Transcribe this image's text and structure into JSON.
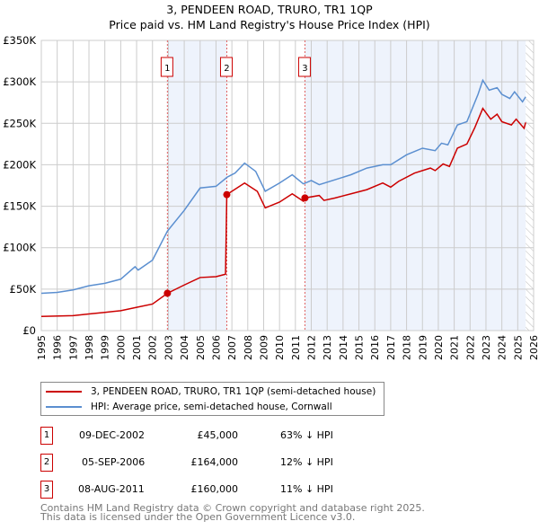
{
  "header": {
    "title": "3, PENDEEN ROAD, TRURO, TR1 1QP",
    "subtitle": "Price paid vs. HM Land Registry's House Price Index (HPI)"
  },
  "chart_data": {
    "type": "line",
    "title": "3, PENDEEN ROAD, TRURO, TR1 1QP",
    "subtitle": "Price paid vs. HM Land Registry's House Price Index (HPI)",
    "xlim": [
      1995,
      2026
    ],
    "ylim": [
      0,
      350000
    ],
    "x_ticks": [
      "1995",
      "1996",
      "1997",
      "1998",
      "1999",
      "2000",
      "2001",
      "2002",
      "2003",
      "2004",
      "2005",
      "2006",
      "2007",
      "2008",
      "2009",
      "2010",
      "2011",
      "2012",
      "2013",
      "2014",
      "2015",
      "2016",
      "2017",
      "2018",
      "2019",
      "2020",
      "2021",
      "2022",
      "2023",
      "2024",
      "2025",
      "2026"
    ],
    "y_ticks": [
      {
        "v": 0,
        "label": "£0"
      },
      {
        "v": 50000,
        "label": "£50K"
      },
      {
        "v": 100000,
        "label": "£100K"
      },
      {
        "v": 150000,
        "label": "£150K"
      },
      {
        "v": 200000,
        "label": "£200K"
      },
      {
        "v": 250000,
        "label": "£250K"
      },
      {
        "v": 300000,
        "label": "£300K"
      },
      {
        "v": 350000,
        "label": "£350K"
      }
    ],
    "grid": true,
    "series": [
      {
        "name": "3, PENDEEN ROAD, TRURO, TR1 1QP (semi-detached house)",
        "color": "#cc0000",
        "points": [
          [
            1995,
            17000
          ],
          [
            1997,
            18000
          ],
          [
            1998,
            20000
          ],
          [
            1999,
            22000
          ],
          [
            2000,
            24000
          ],
          [
            2001,
            28000
          ],
          [
            2002,
            32000
          ],
          [
            2002.94,
            45000
          ],
          [
            2004,
            55000
          ],
          [
            2005,
            64000
          ],
          [
            2006,
            65000
          ],
          [
            2006.6,
            68000
          ],
          [
            2006.68,
            164000
          ],
          [
            2007.8,
            178000
          ],
          [
            2008.6,
            168000
          ],
          [
            2009.1,
            148000
          ],
          [
            2010,
            155000
          ],
          [
            2010.8,
            165000
          ],
          [
            2011.5,
            156000
          ],
          [
            2011.6,
            160000
          ],
          [
            2012.5,
            163000
          ],
          [
            2012.8,
            157000
          ],
          [
            2013.5,
            160000
          ],
          [
            2014.5,
            165000
          ],
          [
            2015.5,
            170000
          ],
          [
            2016.5,
            178000
          ],
          [
            2017,
            173000
          ],
          [
            2017.5,
            180000
          ],
          [
            2018.5,
            190000
          ],
          [
            2019.5,
            196000
          ],
          [
            2019.8,
            193000
          ],
          [
            2020.3,
            201000
          ],
          [
            2020.7,
            198000
          ],
          [
            2021.2,
            220000
          ],
          [
            2021.8,
            225000
          ],
          [
            2022.3,
            245000
          ],
          [
            2022.8,
            268000
          ],
          [
            2023.3,
            255000
          ],
          [
            2023.7,
            261000
          ],
          [
            2024,
            252000
          ],
          [
            2024.6,
            248000
          ],
          [
            2024.9,
            255000
          ],
          [
            2025.4,
            244000
          ],
          [
            2025.5,
            251000
          ]
        ]
      },
      {
        "name": "HPI: Average price, semi-detached house, Cornwall",
        "color": "#5b8fd0",
        "points": [
          [
            1995,
            45000
          ],
          [
            1996,
            46000
          ],
          [
            1997,
            49000
          ],
          [
            1998,
            54000
          ],
          [
            1999,
            57000
          ],
          [
            2000,
            62000
          ],
          [
            2000.9,
            77000
          ],
          [
            2001.1,
            73000
          ],
          [
            2002,
            85000
          ],
          [
            2002.94,
            120000
          ],
          [
            2004,
            145000
          ],
          [
            2005,
            172000
          ],
          [
            2006,
            174000
          ],
          [
            2006.7,
            185000
          ],
          [
            2007.2,
            190000
          ],
          [
            2007.8,
            202000
          ],
          [
            2008.5,
            192000
          ],
          [
            2009.1,
            168000
          ],
          [
            2010,
            178000
          ],
          [
            2010.8,
            188000
          ],
          [
            2011.5,
            177000
          ],
          [
            2012,
            181000
          ],
          [
            2012.5,
            176000
          ],
          [
            2013.5,
            182000
          ],
          [
            2014.5,
            188000
          ],
          [
            2015.5,
            196000
          ],
          [
            2016.5,
            200000
          ],
          [
            2017,
            200000
          ],
          [
            2018,
            212000
          ],
          [
            2019,
            220000
          ],
          [
            2019.8,
            217000
          ],
          [
            2020.2,
            226000
          ],
          [
            2020.6,
            224000
          ],
          [
            2021.2,
            248000
          ],
          [
            2021.8,
            252000
          ],
          [
            2022.5,
            285000
          ],
          [
            2022.8,
            302000
          ],
          [
            2023.2,
            290000
          ],
          [
            2023.7,
            293000
          ],
          [
            2024,
            285000
          ],
          [
            2024.5,
            280000
          ],
          [
            2024.8,
            288000
          ],
          [
            2025.3,
            276000
          ],
          [
            2025.5,
            282000
          ]
        ]
      }
    ],
    "sales": [
      {
        "label": "1",
        "x": 2002.94,
        "price": 45000
      },
      {
        "label": "2",
        "x": 2006.68,
        "price": 164000
      },
      {
        "label": "3",
        "x": 2011.6,
        "price": 160000
      }
    ],
    "shaded": [
      [
        2002.94,
        2006.68
      ],
      [
        2011.6,
        2025.5
      ]
    ],
    "hatched_from": 2025.5
  },
  "legend": {
    "items": [
      {
        "label": "3, PENDEEN ROAD, TRURO, TR1 1QP (semi-detached house)",
        "color": "#cc0000"
      },
      {
        "label": "HPI: Average price, semi-detached house, Cornwall",
        "color": "#5b8fd0"
      }
    ]
  },
  "table": [
    {
      "num": "1",
      "date": "09-DEC-2002",
      "price": "£45,000",
      "hpi": "63% ↓ HPI"
    },
    {
      "num": "2",
      "date": "05-SEP-2006",
      "price": "£164,000",
      "hpi": "12% ↓ HPI"
    },
    {
      "num": "3",
      "date": "08-AUG-2011",
      "price": "£160,000",
      "hpi": "11% ↓ HPI"
    }
  ],
  "footer": {
    "line1": "Contains HM Land Registry data © Crown copyright and database right 2025.",
    "line2": "This data is licensed under the Open Government Licence v3.0."
  }
}
